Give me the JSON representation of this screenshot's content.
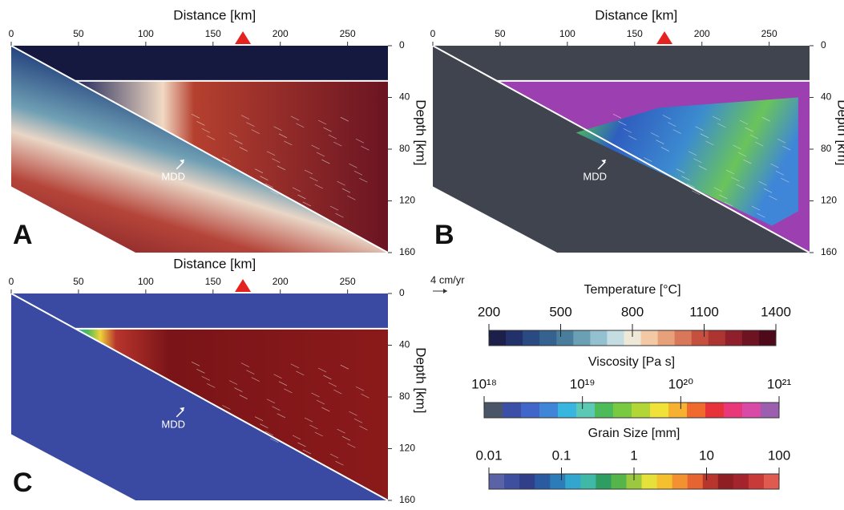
{
  "panels": [
    {
      "label": "A",
      "x_label": "Distance [km]",
      "y_label": "Depth [km]",
      "xlim": [
        0,
        280
      ],
      "xticks": [
        0,
        50,
        100,
        150,
        200,
        250
      ],
      "ylim": [
        0,
        160
      ],
      "yticks": [
        0,
        40,
        80,
        120,
        160
      ],
      "annotation": "MDD",
      "field": "temperature"
    },
    {
      "label": "B",
      "x_label": "Distance [km]",
      "y_label": "Depth [km]",
      "xlim": [
        0,
        280
      ],
      "xticks": [
        0,
        50,
        100,
        150,
        200,
        250
      ],
      "ylim": [
        0,
        160
      ],
      "yticks": [
        0,
        40,
        80,
        120,
        160
      ],
      "annotation": "MDD",
      "field": "viscosity"
    },
    {
      "label": "C",
      "x_label": "Distance [km]",
      "y_label": "Depth [km]",
      "xlim": [
        0,
        280
      ],
      "xticks": [
        0,
        50,
        100,
        150,
        200,
        250
      ],
      "ylim": [
        0,
        160
      ],
      "yticks": [
        0,
        40,
        80,
        120,
        160
      ],
      "annotation": "MDD",
      "field": "grain"
    }
  ],
  "velocity_scale": "4 cm/yr",
  "colorbars": [
    {
      "title": "Temperature [°C]",
      "lim": [
        200,
        1400
      ],
      "log": false,
      "ticks": [
        200,
        500,
        800,
        1100,
        1400
      ],
      "colors": [
        "#1b1f4a",
        "#22316a",
        "#2a4a82",
        "#35628f",
        "#4a7c9c",
        "#6a9fb4",
        "#93c1cf",
        "#c3dde3",
        "#eee8d8",
        "#f2c9a4",
        "#e8a07a",
        "#d9775a",
        "#c6503f",
        "#ae3431",
        "#8f1f2a",
        "#6e1322",
        "#4e0a1b"
      ]
    },
    {
      "title": "Viscosity [Pa s]",
      "lim": [
        1e+18,
        1e+21
      ],
      "log": true,
      "ticks": [
        {
          "value": 1e+18,
          "label": "10¹⁸"
        },
        {
          "value": 1e+19,
          "label": "10¹⁹"
        },
        {
          "value": 1e+20,
          "label": "10²⁰"
        },
        {
          "value": 1e+21,
          "label": "10²¹"
        }
      ],
      "colors": [
        "#4b5568",
        "#3c4fa8",
        "#3f66c8",
        "#3f86d8",
        "#38b6e0",
        "#5cc9b5",
        "#4dbb5a",
        "#7ac943",
        "#b3d637",
        "#f1e23a",
        "#f6b130",
        "#ef6a2c",
        "#e8323a",
        "#e8387a",
        "#d84aa6",
        "#9c5fb0"
      ]
    },
    {
      "title": "Grain Size [mm]",
      "lim": [
        0.01,
        100
      ],
      "log": true,
      "ticks": [
        0.01,
        0.1,
        1,
        10,
        100
      ],
      "colors": [
        "#5a63a6",
        "#3f4fa0",
        "#2f3f8a",
        "#2a5aa0",
        "#2b7cb8",
        "#33a6cf",
        "#3fb8a8",
        "#2f9c62",
        "#55b44a",
        "#9cc83f",
        "#e6e03a",
        "#f5c030",
        "#f29032",
        "#e66432",
        "#b8352d",
        "#8f1e22",
        "#a3242a",
        "#c83a38",
        "#e05a4f"
      ]
    }
  ]
}
